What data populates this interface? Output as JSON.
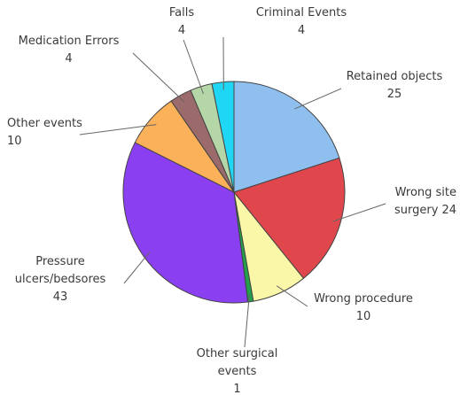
{
  "chart_data": {
    "type": "pie",
    "categories": [
      "Retained objects",
      "Wrong site surgery",
      "Wrong procedure",
      "Other surgical events",
      "Pressure ulcers/bedsores",
      "Other events",
      "Medication Errors",
      "Falls",
      "Criminal Events"
    ],
    "values": [
      25,
      24,
      10,
      1,
      43,
      10,
      4,
      4,
      4
    ],
    "colors": [
      "#8fbfef",
      "#e0474c",
      "#fbf7a8",
      "#22a04a",
      "#8a3ff0",
      "#fbb05a",
      "#9b6a6a",
      "#b5d6a7",
      "#1fd6f5"
    ]
  }
}
